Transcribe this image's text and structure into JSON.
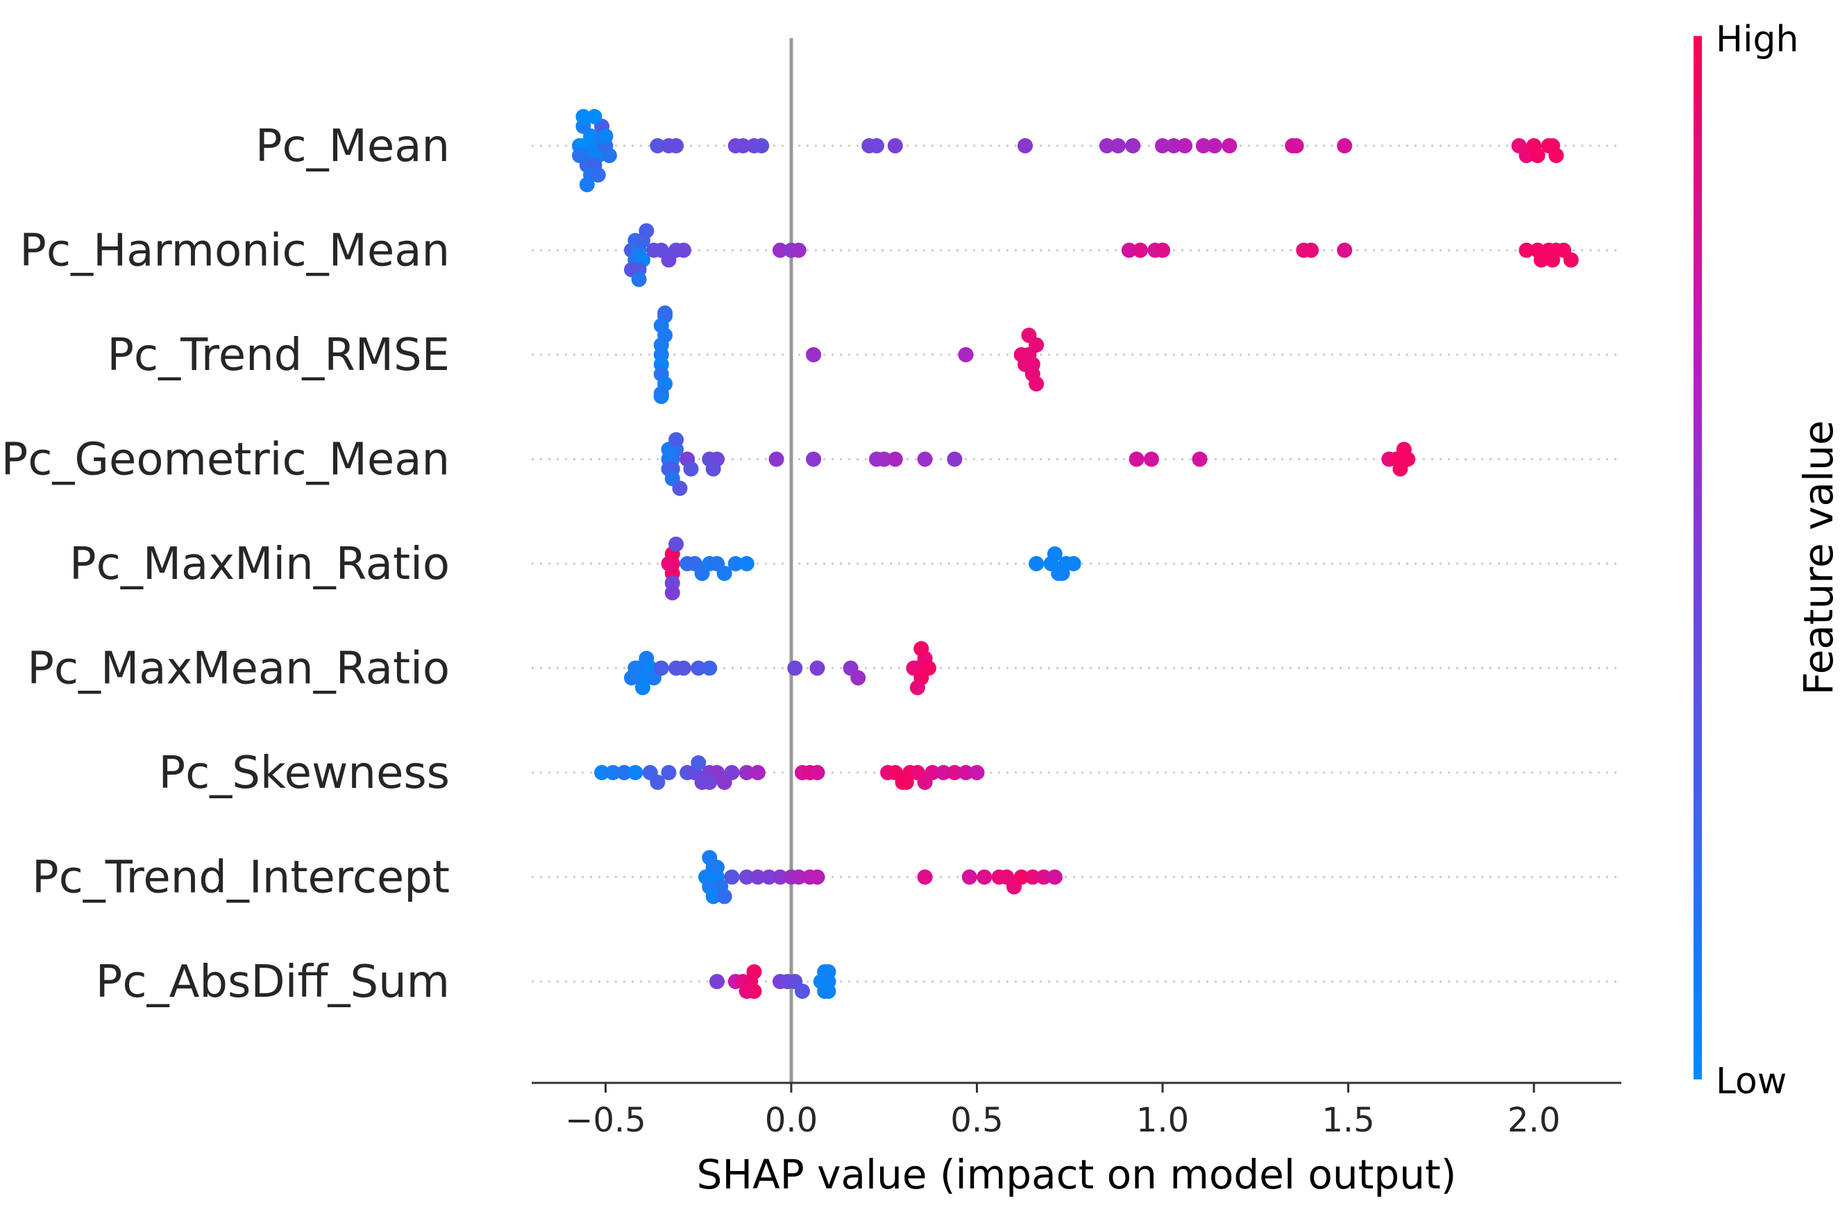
{
  "chart_data": {
    "type": "scatter",
    "subtype": "shap-beeswarm",
    "xlabel": "SHAP value (impact on model output)",
    "xlim": [
      -0.7,
      2.25
    ],
    "xticks": [
      -0.5,
      0.0,
      0.5,
      1.0,
      1.5,
      2.0
    ],
    "xtick_labels": [
      "−0.5",
      "0.0",
      "0.5",
      "1.0",
      "1.5",
      "2.0"
    ],
    "colorbar": {
      "title": "Feature value",
      "high_label": "High",
      "low_label": "Low",
      "high_color": "#ff0052",
      "low_color": "#008bfb"
    },
    "features": [
      {
        "name": "Pc_Mean",
        "points": [
          [
            -0.57,
            0.05
          ],
          [
            -0.56,
            0.0
          ],
          [
            -0.55,
            0.1
          ],
          [
            -0.54,
            0.0
          ],
          [
            -0.53,
            0.05
          ],
          [
            -0.52,
            0.05
          ],
          [
            -0.51,
            0.1
          ],
          [
            -0.5,
            0.2
          ],
          [
            -0.57,
            0.15
          ],
          [
            -0.55,
            0.2
          ],
          [
            -0.53,
            0.25
          ],
          [
            -0.51,
            0.3
          ],
          [
            -0.49,
            0.15
          ],
          [
            -0.56,
            0.1
          ],
          [
            -0.54,
            0.15
          ],
          [
            -0.52,
            0.2
          ],
          [
            -0.5,
            0.05
          ],
          [
            -0.56,
            0.0
          ],
          [
            -0.53,
            0.0
          ],
          [
            -0.55,
            0.1
          ],
          [
            -0.36,
            0.35
          ],
          [
            -0.33,
            0.4
          ],
          [
            -0.31,
            0.4
          ],
          [
            -0.15,
            0.45
          ],
          [
            -0.13,
            0.45
          ],
          [
            -0.1,
            0.45
          ],
          [
            -0.08,
            0.4
          ],
          [
            0.21,
            0.45
          ],
          [
            0.23,
            0.45
          ],
          [
            0.28,
            0.5
          ],
          [
            0.63,
            0.55
          ],
          [
            0.85,
            0.6
          ],
          [
            0.88,
            0.6
          ],
          [
            0.92,
            0.6
          ],
          [
            1.0,
            0.65
          ],
          [
            1.03,
            0.65
          ],
          [
            1.06,
            0.7
          ],
          [
            1.11,
            0.7
          ],
          [
            1.14,
            0.7
          ],
          [
            1.18,
            0.75
          ],
          [
            1.35,
            0.8
          ],
          [
            1.36,
            0.8
          ],
          [
            1.49,
            0.8
          ],
          [
            1.96,
            0.9
          ],
          [
            1.98,
            0.9
          ],
          [
            2.0,
            0.95
          ],
          [
            2.01,
            0.95
          ],
          [
            2.04,
            0.95
          ],
          [
            2.05,
            0.95
          ],
          [
            2.06,
            0.95
          ]
        ]
      },
      {
        "name": "Pc_Harmonic_Mean",
        "points": [
          [
            -0.43,
            0.3
          ],
          [
            -0.42,
            0.15
          ],
          [
            -0.41,
            0.1
          ],
          [
            -0.4,
            0.05
          ],
          [
            -0.42,
            0.2
          ],
          [
            -0.4,
            0.25
          ],
          [
            -0.41,
            0.3
          ],
          [
            -0.43,
            0.35
          ],
          [
            -0.39,
            0.3
          ],
          [
            -0.41,
            0.15
          ],
          [
            -0.37,
            0.4
          ],
          [
            -0.35,
            0.4
          ],
          [
            -0.33,
            0.45
          ],
          [
            -0.31,
            0.4
          ],
          [
            -0.29,
            0.45
          ],
          [
            -0.03,
            0.6
          ],
          [
            0.0,
            0.55
          ],
          [
            0.02,
            0.6
          ],
          [
            0.91,
            0.8
          ],
          [
            0.94,
            0.85
          ],
          [
            0.98,
            0.8
          ],
          [
            1.0,
            0.85
          ],
          [
            1.38,
            0.9
          ],
          [
            1.4,
            0.9
          ],
          [
            1.49,
            0.85
          ],
          [
            1.98,
            0.95
          ],
          [
            2.01,
            0.95
          ],
          [
            2.04,
            0.95
          ],
          [
            2.06,
            0.95
          ],
          [
            2.08,
            0.95
          ],
          [
            2.1,
            0.95
          ],
          [
            2.02,
            0.95
          ],
          [
            2.05,
            0.95
          ]
        ]
      },
      {
        "name": "Pc_Trend_RMSE",
        "points": [
          [
            -0.35,
            0.1
          ],
          [
            -0.35,
            0.05
          ],
          [
            -0.35,
            0.1
          ],
          [
            -0.35,
            0.15
          ],
          [
            -0.34,
            0.1
          ],
          [
            -0.34,
            0.05
          ],
          [
            -0.35,
            0.1
          ],
          [
            -0.35,
            0.15
          ],
          [
            -0.34,
            0.1
          ],
          [
            -0.35,
            0.05
          ],
          [
            -0.34,
            0.2
          ],
          [
            -0.35,
            0.1
          ],
          [
            0.06,
            0.6
          ],
          [
            0.47,
            0.65
          ],
          [
            0.62,
            0.9
          ],
          [
            0.63,
            0.9
          ],
          [
            0.64,
            0.9
          ],
          [
            0.65,
            0.9
          ],
          [
            0.66,
            0.9
          ],
          [
            0.65,
            0.9
          ],
          [
            0.64,
            0.9
          ],
          [
            0.66,
            0.9
          ]
        ]
      },
      {
        "name": "Pc_Geometric_Mean",
        "points": [
          [
            -0.33,
            0.15
          ],
          [
            -0.32,
            0.1
          ],
          [
            -0.33,
            0.25
          ],
          [
            -0.32,
            0.3
          ],
          [
            -0.31,
            0.2
          ],
          [
            -0.33,
            0.1
          ],
          [
            -0.32,
            0.15
          ],
          [
            -0.31,
            0.3
          ],
          [
            -0.3,
            0.35
          ],
          [
            -0.28,
            0.5
          ],
          [
            -0.27,
            0.35
          ],
          [
            -0.22,
            0.4
          ],
          [
            -0.2,
            0.45
          ],
          [
            -0.21,
            0.4
          ],
          [
            -0.04,
            0.55
          ],
          [
            0.06,
            0.55
          ],
          [
            0.23,
            0.6
          ],
          [
            0.25,
            0.6
          ],
          [
            0.28,
            0.65
          ],
          [
            0.36,
            0.6
          ],
          [
            0.44,
            0.55
          ],
          [
            0.93,
            0.8
          ],
          [
            0.97,
            0.8
          ],
          [
            1.1,
            0.8
          ],
          [
            1.61,
            0.9
          ],
          [
            1.63,
            0.95
          ],
          [
            1.64,
            0.95
          ],
          [
            1.65,
            0.95
          ],
          [
            1.66,
            0.95
          ]
        ]
      },
      {
        "name": "Pc_MaxMin_Ratio",
        "points": [
          [
            -0.32,
            0.95
          ],
          [
            -0.32,
            0.95
          ],
          [
            -0.32,
            0.95
          ],
          [
            -0.33,
            0.9
          ],
          [
            -0.32,
            0.45
          ],
          [
            -0.31,
            0.4
          ],
          [
            -0.32,
            0.5
          ],
          [
            -0.28,
            0.2
          ],
          [
            -0.26,
            0.2
          ],
          [
            -0.24,
            0.15
          ],
          [
            -0.22,
            0.1
          ],
          [
            -0.2,
            0.15
          ],
          [
            -0.18,
            0.1
          ],
          [
            -0.15,
            0.1
          ],
          [
            -0.12,
            0.05
          ],
          [
            0.66,
            0.05
          ],
          [
            0.7,
            0.05
          ],
          [
            0.72,
            0.05
          ],
          [
            0.74,
            0.05
          ],
          [
            0.76,
            0.05
          ],
          [
            0.73,
            0.05
          ],
          [
            0.71,
            0.05
          ]
        ]
      },
      {
        "name": "Pc_MaxMean_Ratio",
        "points": [
          [
            -0.41,
            0.05
          ],
          [
            -0.4,
            0.05
          ],
          [
            -0.39,
            0.1
          ],
          [
            -0.42,
            0.1
          ],
          [
            -0.38,
            0.05
          ],
          [
            -0.4,
            0.05
          ],
          [
            -0.43,
            0.1
          ],
          [
            -0.37,
            0.1
          ],
          [
            -0.35,
            0.3
          ],
          [
            -0.31,
            0.35
          ],
          [
            -0.29,
            0.35
          ],
          [
            -0.25,
            0.3
          ],
          [
            -0.22,
            0.25
          ],
          [
            0.01,
            0.45
          ],
          [
            0.07,
            0.5
          ],
          [
            0.16,
            0.55
          ],
          [
            0.18,
            0.6
          ],
          [
            0.33,
            0.9
          ],
          [
            0.34,
            0.9
          ],
          [
            0.35,
            0.95
          ],
          [
            0.36,
            0.9
          ],
          [
            0.37,
            0.95
          ],
          [
            0.34,
            0.9
          ],
          [
            0.35,
            0.95
          ]
        ]
      },
      {
        "name": "Pc_Skewness",
        "points": [
          [
            -0.51,
            0.05
          ],
          [
            -0.48,
            0.1
          ],
          [
            -0.45,
            0.15
          ],
          [
            -0.42,
            0.05
          ],
          [
            -0.38,
            0.25
          ],
          [
            -0.36,
            0.3
          ],
          [
            -0.33,
            0.3
          ],
          [
            -0.28,
            0.35
          ],
          [
            -0.26,
            0.4
          ],
          [
            -0.24,
            0.45
          ],
          [
            -0.22,
            0.5
          ],
          [
            -0.2,
            0.55
          ],
          [
            -0.18,
            0.55
          ],
          [
            -0.16,
            0.5
          ],
          [
            -0.12,
            0.6
          ],
          [
            -0.09,
            0.65
          ],
          [
            -0.22,
            0.45
          ],
          [
            -0.25,
            0.3
          ],
          [
            0.03,
            0.8
          ],
          [
            0.05,
            0.85
          ],
          [
            0.07,
            0.8
          ],
          [
            0.26,
            0.9
          ],
          [
            0.28,
            0.95
          ],
          [
            0.3,
            0.95
          ],
          [
            0.32,
            0.95
          ],
          [
            0.34,
            0.9
          ],
          [
            0.36,
            0.85
          ],
          [
            0.38,
            0.85
          ],
          [
            0.41,
            0.8
          ],
          [
            0.44,
            0.85
          ],
          [
            0.47,
            0.8
          ],
          [
            0.5,
            0.75
          ],
          [
            0.31,
            0.95
          ]
        ]
      },
      {
        "name": "Pc_Trend_Intercept",
        "points": [
          [
            -0.23,
            0.05
          ],
          [
            -0.22,
            0.1
          ],
          [
            -0.21,
            0.1
          ],
          [
            -0.2,
            0.05
          ],
          [
            -0.19,
            0.15
          ],
          [
            -0.21,
            0.05
          ],
          [
            -0.22,
            0.1
          ],
          [
            -0.2,
            0.1
          ],
          [
            -0.18,
            0.2
          ],
          [
            -0.16,
            0.35
          ],
          [
            -0.12,
            0.45
          ],
          [
            -0.09,
            0.5
          ],
          [
            -0.06,
            0.5
          ],
          [
            -0.03,
            0.55
          ],
          [
            0.0,
            0.6
          ],
          [
            0.02,
            0.65
          ],
          [
            0.05,
            0.7
          ],
          [
            0.07,
            0.7
          ],
          [
            0.36,
            0.85
          ],
          [
            0.48,
            0.8
          ],
          [
            0.52,
            0.85
          ],
          [
            0.56,
            0.9
          ],
          [
            0.58,
            0.9
          ],
          [
            0.6,
            0.9
          ],
          [
            0.62,
            0.95
          ],
          [
            0.65,
            0.9
          ],
          [
            0.68,
            0.85
          ],
          [
            0.71,
            0.8
          ]
        ]
      },
      {
        "name": "Pc_AbsDiff_Sum",
        "points": [
          [
            -0.2,
            0.5
          ],
          [
            -0.15,
            0.75
          ],
          [
            -0.13,
            0.85
          ],
          [
            -0.11,
            0.9
          ],
          [
            -0.1,
            0.95
          ],
          [
            -0.12,
            0.9
          ],
          [
            -0.1,
            0.95
          ],
          [
            -0.03,
            0.5
          ],
          [
            -0.01,
            0.45
          ],
          [
            0.01,
            0.4
          ],
          [
            0.03,
            0.35
          ],
          [
            0.08,
            0.05
          ],
          [
            0.09,
            0.05
          ],
          [
            0.1,
            0.05
          ],
          [
            0.1,
            0.05
          ],
          [
            0.09,
            0.05
          ],
          [
            0.1,
            0.05
          ]
        ]
      }
    ]
  }
}
